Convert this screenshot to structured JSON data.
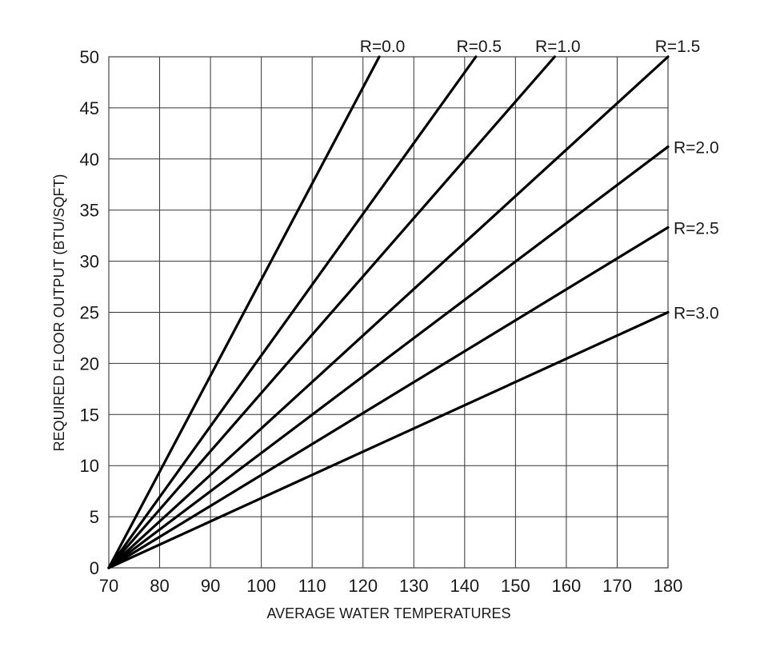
{
  "chart_data": {
    "type": "line",
    "title": "",
    "xlabel": "AVERAGE WATER TEMPERATURES",
    "ylabel": "REQUIRED FLOOR OUTPUT (BTU/SQFT)",
    "xlim": [
      70,
      180
    ],
    "ylim": [
      0,
      50
    ],
    "xticks": [
      70,
      80,
      90,
      100,
      110,
      120,
      130,
      140,
      150,
      160,
      170,
      180
    ],
    "yticks": [
      0,
      5,
      10,
      15,
      20,
      25,
      30,
      35,
      40,
      45,
      50
    ],
    "grid": true,
    "legend_position": "inline labels at line ends (top and right)",
    "series": [
      {
        "name": "R=0.0",
        "x": [
          70,
          123.2
        ],
        "y": [
          0,
          50
        ]
      },
      {
        "name": "R=0.5",
        "x": [
          70,
          142.2
        ],
        "y": [
          0,
          50
        ]
      },
      {
        "name": "R=1.0",
        "x": [
          70,
          157.7
        ],
        "y": [
          0,
          50
        ]
      },
      {
        "name": "R=1.5",
        "x": [
          70,
          180
        ],
        "y": [
          0,
          50
        ]
      },
      {
        "name": "R=2.0",
        "x": [
          70,
          180
        ],
        "y": [
          0,
          41.2
        ]
      },
      {
        "name": "R=2.5",
        "x": [
          70,
          180
        ],
        "y": [
          0,
          33.3
        ]
      },
      {
        "name": "R=3.0",
        "x": [
          70,
          180
        ],
        "y": [
          0,
          25.0
        ]
      }
    ]
  },
  "labels": {
    "x_axis_title": "AVERAGE WATER TEMPERATURES",
    "y_axis_title": "REQUIRED FLOOR OUTPUT (BTU/SQFT)"
  }
}
